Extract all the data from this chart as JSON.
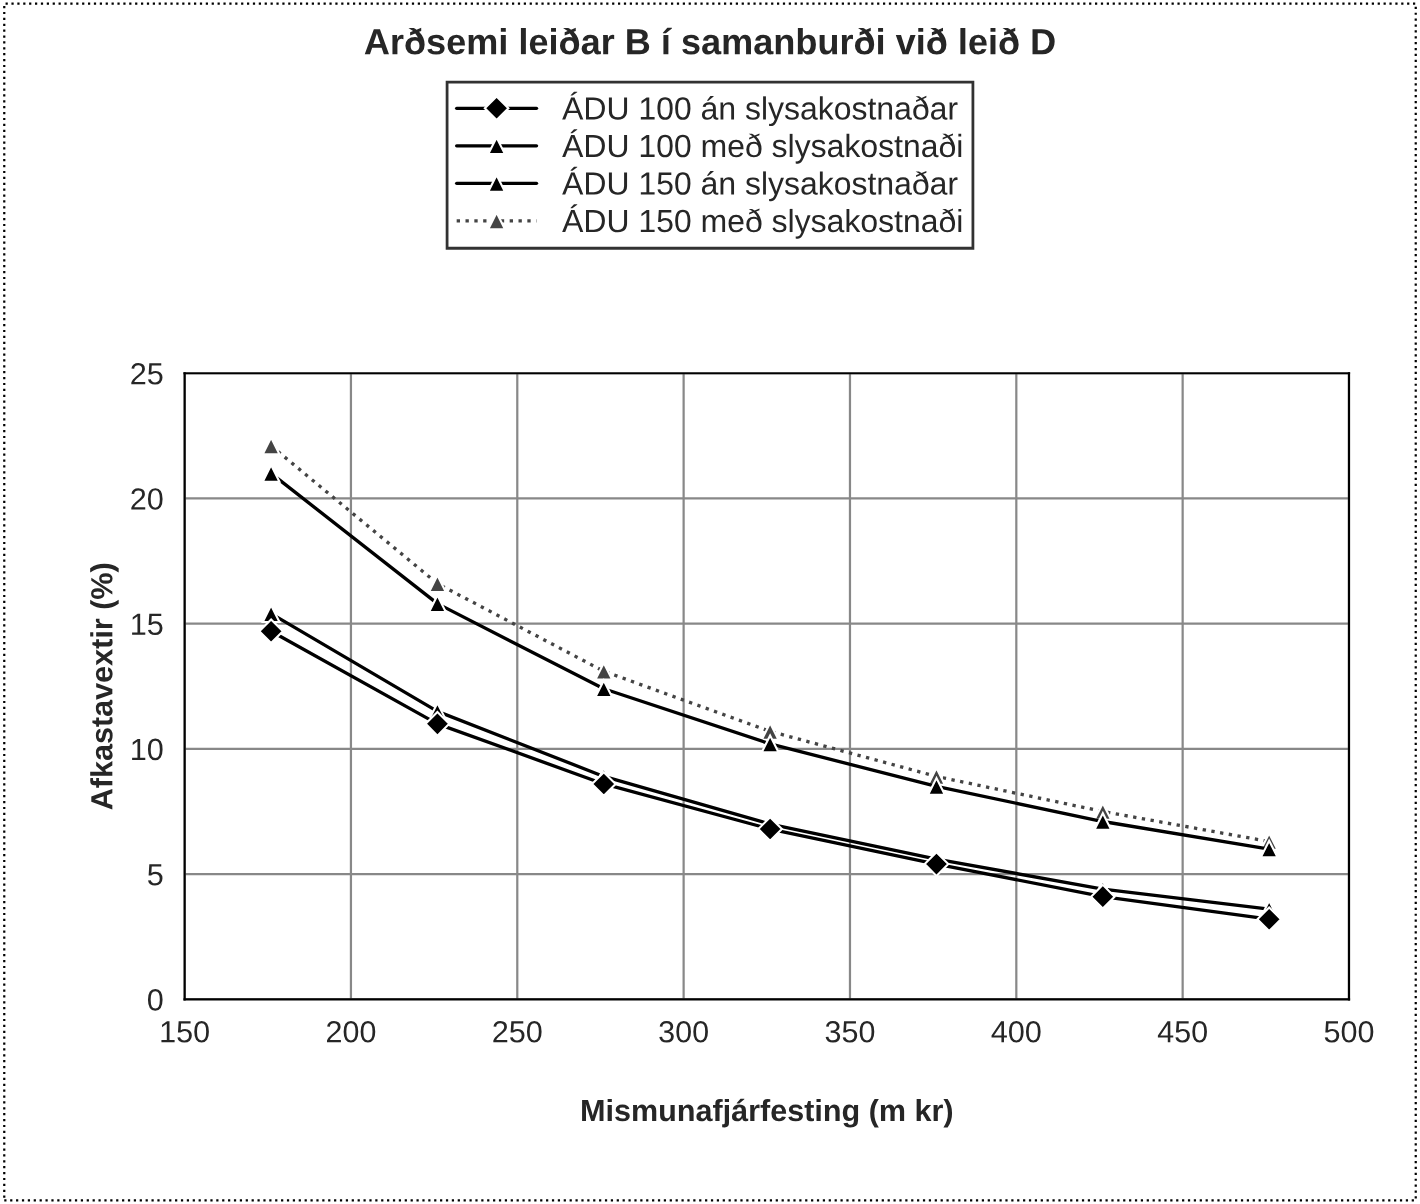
{
  "chart_data": {
    "type": "line",
    "title": "Arðsemi leiðar B í samanburði við leið D",
    "xlabel": "Mismunafjárfesting (m kr)",
    "ylabel": "Afkastavextir (%)",
    "x": [
      176,
      226,
      276,
      326,
      376,
      426,
      476
    ],
    "series": [
      {
        "name": "ÁDU 100 án slysakostnaðar",
        "color": "#000000",
        "marker": "diamond",
        "line_style": "solid",
        "values": [
          14.7,
          11.0,
          8.6,
          6.8,
          5.4,
          4.1,
          3.2
        ]
      },
      {
        "name": "ÁDU 100 með slysakostnaði",
        "color": "#000000",
        "marker": "triangle",
        "line_style": "solid",
        "values": [
          15.4,
          11.5,
          8.9,
          7.0,
          5.6,
          4.4,
          3.6
        ]
      },
      {
        "name": "ÁDU 150 án slysakostnaðar",
        "color": "#000000",
        "marker": "triangle",
        "line_style": "solid",
        "values": [
          21.0,
          15.8,
          12.4,
          10.2,
          8.5,
          7.1,
          6.0
        ]
      },
      {
        "name": "ÁDU 150 með slysakostnaði",
        "color": "#444444",
        "marker": "triangle",
        "line_style": "dotted",
        "values": [
          22.1,
          16.6,
          13.1,
          10.7,
          8.9,
          7.5,
          6.3
        ]
      }
    ],
    "xlim": [
      150,
      500
    ],
    "xticks": [
      150,
      200,
      250,
      300,
      350,
      400,
      450,
      500
    ],
    "ylim": [
      0,
      25
    ],
    "yticks": [
      0,
      5,
      10,
      15,
      20,
      25
    ],
    "grid": true,
    "legend": "top"
  }
}
